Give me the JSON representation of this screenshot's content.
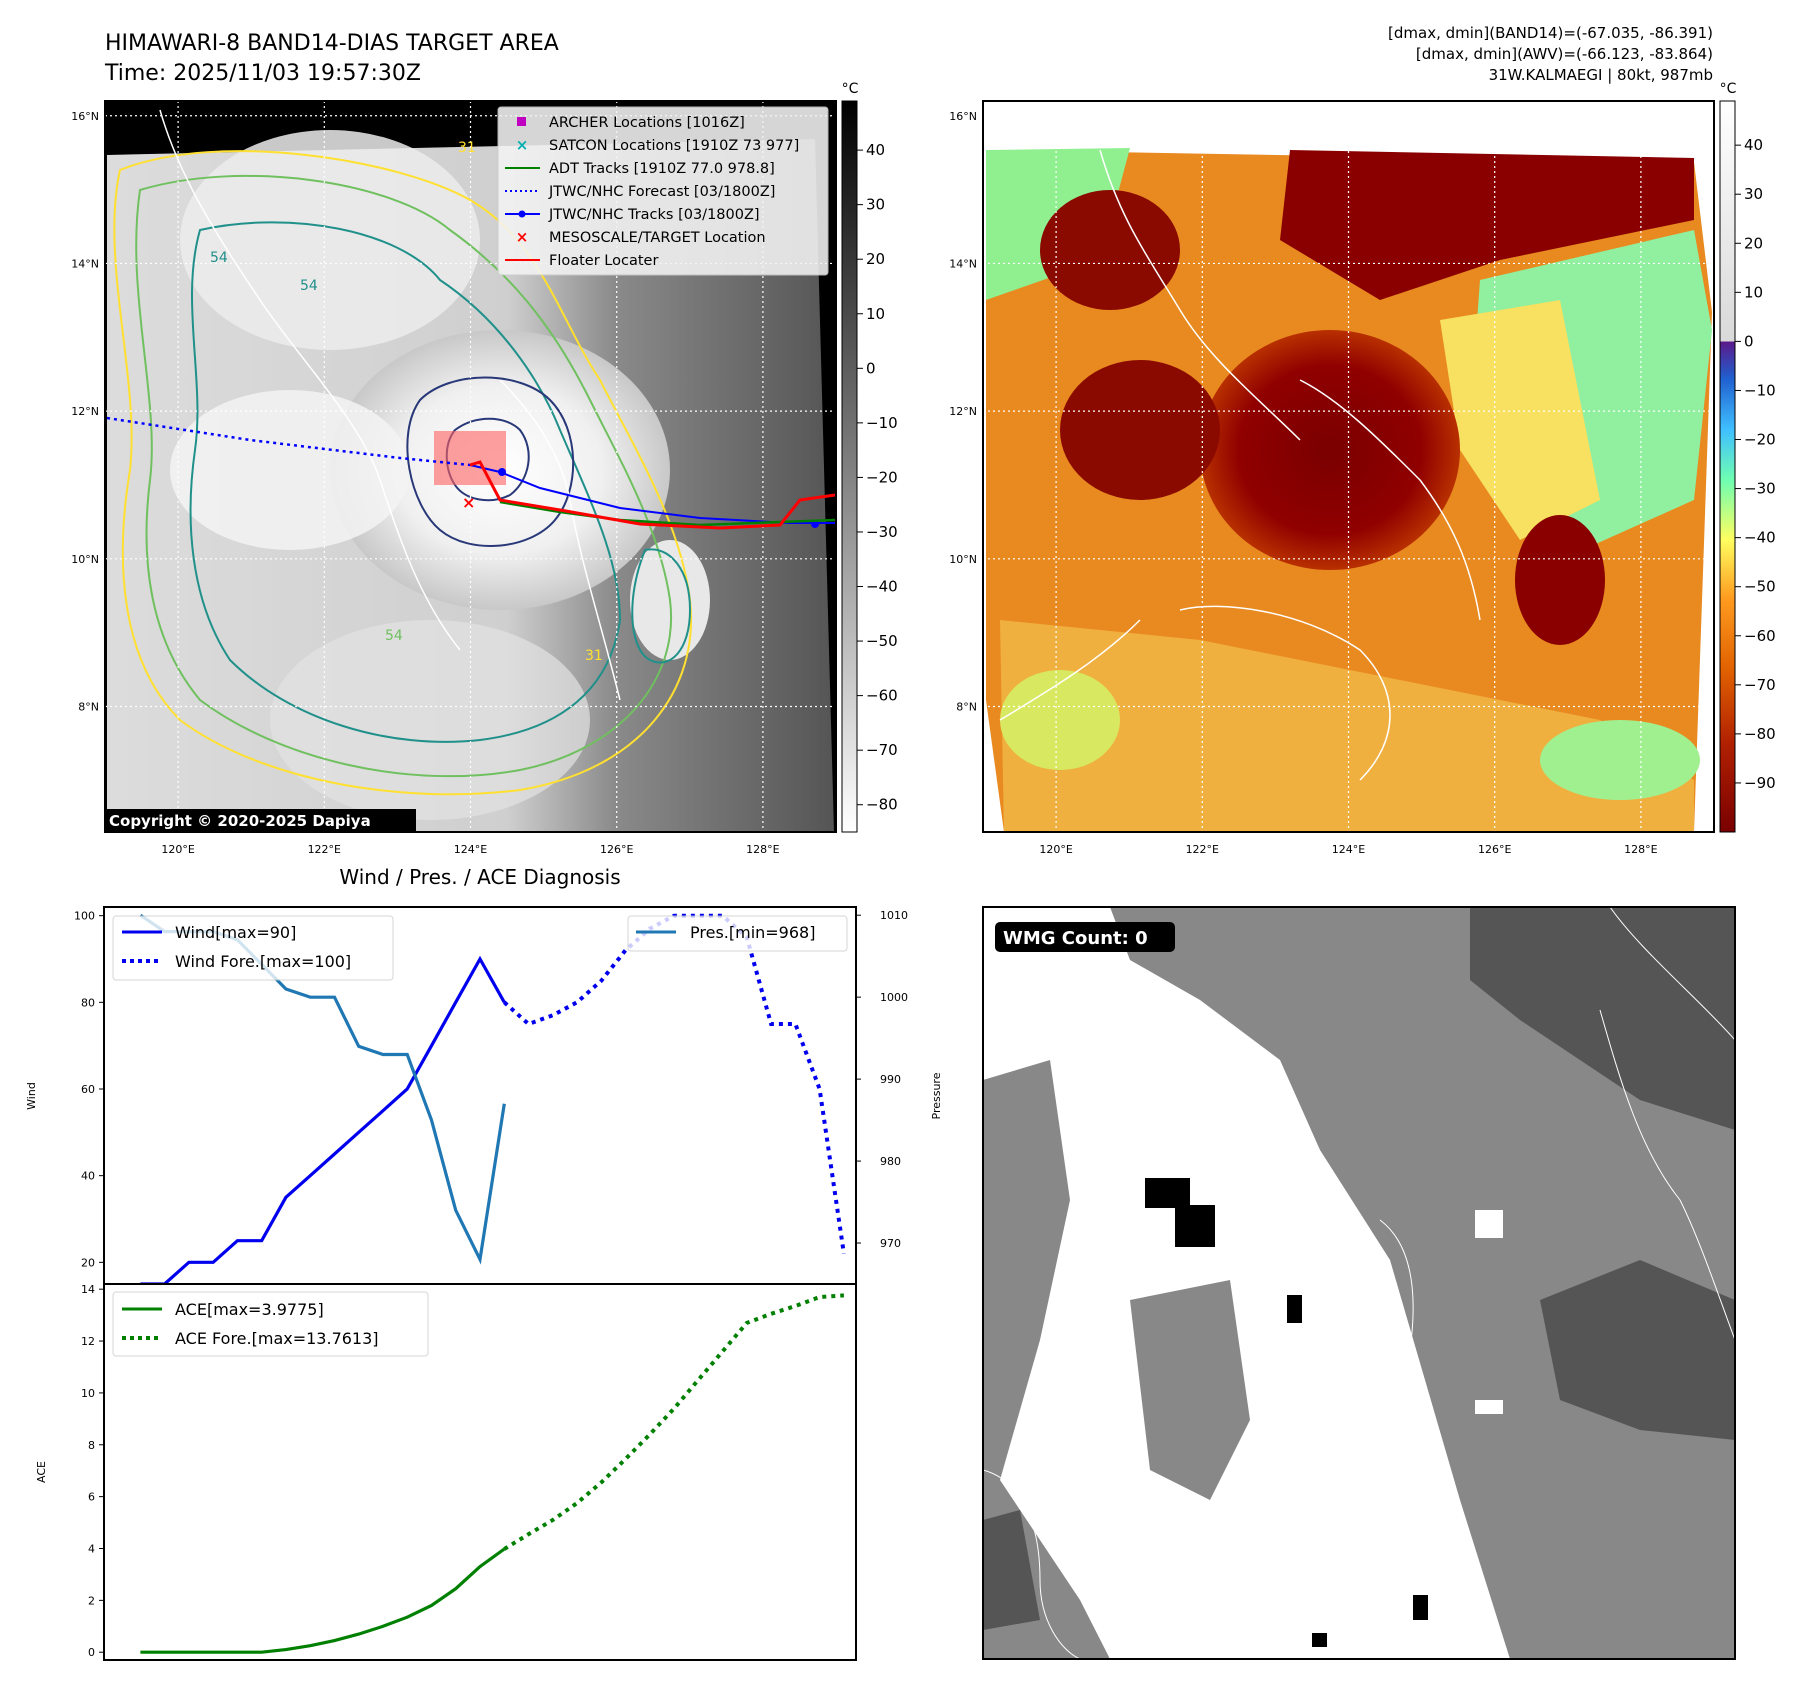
{
  "header": {
    "title": "HIMAWARI-8 BAND14-DIAS TARGET AREA",
    "time": "Time: 2025/11/03 19:57:30Z",
    "dmax_band14": "[dmax, dmin](BAND14)=(-67.035, -86.391)",
    "dmax_awv": "[dmax, dmin](AWV)=(-66.123, -83.864)",
    "storm": "31W.KALMAEGI | 80kt, 987mb"
  },
  "map_left": {
    "lat_labels": [
      "16°N",
      "14°N",
      "12°N",
      "10°N",
      "8°N"
    ],
    "lat_values": [
      16,
      14,
      12,
      10,
      8
    ],
    "lon_labels": [
      "120°E",
      "122°E",
      "124°E",
      "126°E",
      "128°E"
    ],
    "lon_values": [
      120,
      122,
      124,
      126,
      128
    ],
    "lon_range": [
      119,
      129
    ],
    "lat_range": [
      6.3,
      16.2
    ],
    "copyright": "Copyright © 2020-2025 Dapiya",
    "legend": [
      {
        "label": "ARCHER Locations [1016Z]",
        "color": "#c000c0",
        "marker": "square"
      },
      {
        "label": "SATCON Locations [1910Z 73 977]",
        "color": "#00b0b0",
        "marker": "x"
      },
      {
        "label": "ADT Tracks [1910Z 77.0 978.8]",
        "color": "#008000",
        "marker": "line"
      },
      {
        "label": "JTWC/NHC Forecast [03/1800Z]",
        "color": "#0000ff",
        "marker": "dotted"
      },
      {
        "label": "JTWC/NHC Tracks [03/1800Z]",
        "color": "#0000ff",
        "marker": "line-dot"
      },
      {
        "label": "MESOSCALE/TARGET Location",
        "color": "#ff0000",
        "marker": "x"
      },
      {
        "label": "Floater Locater",
        "color": "#ff0000",
        "marker": "line"
      }
    ],
    "contour_labels": [
      "54",
      "31",
      "54",
      "31",
      "54"
    ]
  },
  "colorbar_left": {
    "unit": "°C",
    "ticks": [
      "40",
      "30",
      "20",
      "10",
      "0",
      "−10",
      "−20",
      "−30",
      "−40",
      "−50",
      "−60",
      "−70",
      "−80"
    ],
    "tick_values": [
      40,
      30,
      20,
      10,
      0,
      -10,
      -20,
      -30,
      -40,
      -50,
      -60,
      -70,
      -80
    ],
    "range": [
      -85,
      49
    ]
  },
  "map_right": {
    "lat_labels": [
      "16°N",
      "14°N",
      "12°N",
      "10°N",
      "8°N"
    ],
    "lon_labels": [
      "120°E",
      "122°E",
      "124°E",
      "126°E",
      "128°E"
    ]
  },
  "colorbar_right": {
    "unit": "°C",
    "ticks": [
      "40",
      "30",
      "20",
      "10",
      "0",
      "−10",
      "−20",
      "−30",
      "−40",
      "−50",
      "−60",
      "−70",
      "−80",
      "−90"
    ],
    "tick_values": [
      40,
      30,
      20,
      10,
      0,
      -10,
      -20,
      -30,
      -40,
      -50,
      -60,
      -70,
      -80,
      -90
    ],
    "range": [
      -100,
      49
    ]
  },
  "chart_data": [
    {
      "type": "line",
      "title": "Wind / Pres. / ACE Diagnosis",
      "ylabel": "Wind",
      "ylabel_right": "Pressure",
      "xlim": [
        -0.5,
        30.5
      ],
      "ylim": [
        15,
        102
      ],
      "yticks": [
        "100",
        "80",
        "60",
        "40",
        "20"
      ],
      "ytick_values": [
        100,
        80,
        60,
        40,
        20
      ],
      "ylim_right": [
        965,
        1011
      ],
      "yticks_right": [
        "1010",
        "1000",
        "990",
        "980",
        "970"
      ],
      "ytick_values_right": [
        1010,
        1000,
        990,
        980,
        970
      ],
      "legend_left": [
        "Wind[max=90]",
        "Wind Fore.[max=100]"
      ],
      "legend_right": [
        "Pres.[min=968]"
      ],
      "series": [
        {
          "name": "Wind[max=90]",
          "axis": "left",
          "color": "#0000ee",
          "style": "solid",
          "x": [
            1,
            2,
            3,
            4,
            5,
            6,
            7,
            8,
            9,
            10,
            11,
            12,
            13,
            14,
            15,
            16
          ],
          "values": [
            15,
            15,
            20,
            20,
            25,
            25,
            35,
            40,
            45,
            50,
            55,
            60,
            70,
            80,
            90,
            80
          ]
        },
        {
          "name": "Wind Fore.[max=100]",
          "axis": "left",
          "color": "#0000ee",
          "style": "dotted",
          "x": [
            16,
            17,
            18,
            19,
            20,
            21,
            22,
            23,
            24,
            25,
            26,
            27,
            28,
            29,
            30
          ],
          "values": [
            80,
            75,
            77,
            80,
            85,
            92,
            97,
            100,
            100,
            100,
            95,
            75,
            75,
            60,
            22
          ]
        },
        {
          "name": "Pres.[min=968]",
          "axis": "right",
          "color": "#1f77b4",
          "style": "solid",
          "x": [
            1,
            2,
            3,
            4,
            5,
            6,
            7,
            8,
            9,
            10,
            11,
            12,
            13,
            14,
            15,
            16
          ],
          "values": [
            1010,
            1008,
            1008,
            1008,
            1007,
            1004,
            1001,
            1000,
            1000,
            994,
            993,
            993,
            985,
            974,
            968,
            987
          ]
        }
      ]
    },
    {
      "type": "line",
      "ylabel": "ACE",
      "xlim": [
        -0.5,
        30.5
      ],
      "ylim": [
        -0.3,
        14.2
      ],
      "yticks": [
        "14",
        "12",
        "10",
        "8",
        "6",
        "4",
        "2",
        "0"
      ],
      "ytick_values": [
        14,
        12,
        10,
        8,
        6,
        4,
        2,
        0
      ],
      "legend": [
        "ACE[max=3.9775]",
        "ACE Fore.[max=13.7613]"
      ],
      "series": [
        {
          "name": "ACE[max=3.9775]",
          "color": "#008000",
          "style": "solid",
          "x": [
            1,
            2,
            3,
            4,
            5,
            6,
            7,
            8,
            9,
            10,
            11,
            12,
            13,
            14,
            15,
            16
          ],
          "values": [
            0,
            0,
            0,
            0,
            0,
            0,
            0.1,
            0.25,
            0.45,
            0.7,
            1.0,
            1.35,
            1.8,
            2.45,
            3.3,
            3.98
          ]
        },
        {
          "name": "ACE Fore.[max=13.7613]",
          "color": "#008000",
          "style": "dotted",
          "x": [
            16,
            17,
            18,
            19,
            20,
            21,
            22,
            23,
            24,
            25,
            26,
            27,
            28,
            29,
            30
          ],
          "values": [
            3.98,
            4.55,
            5.1,
            5.75,
            6.55,
            7.45,
            8.4,
            9.4,
            10.5,
            11.6,
            12.7,
            13.05,
            13.35,
            13.7,
            13.76
          ]
        }
      ]
    }
  ],
  "wmg_panel": {
    "label": "WMG Count: 0"
  }
}
